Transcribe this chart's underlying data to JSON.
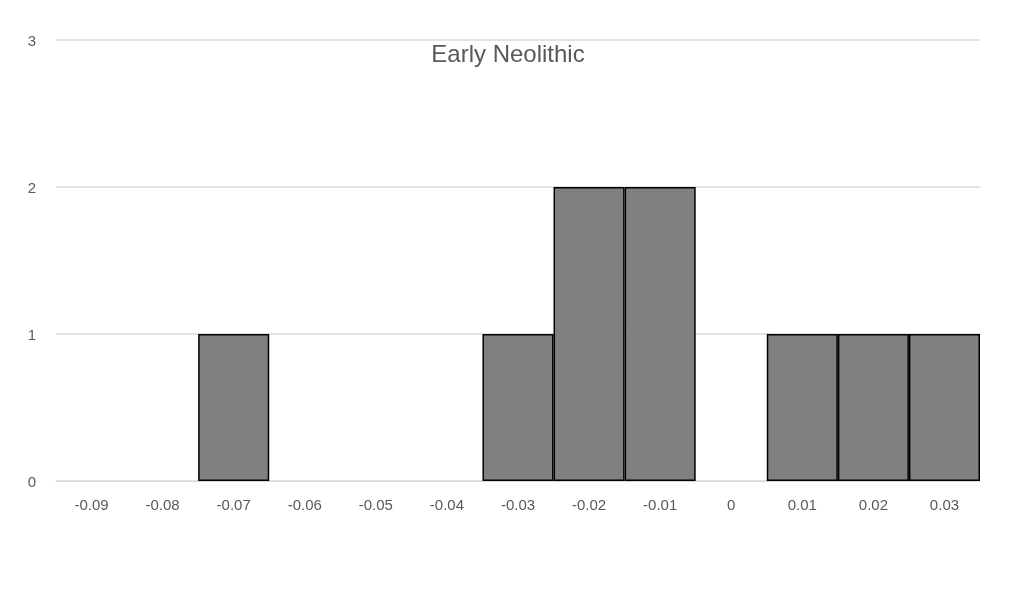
{
  "chart_data": {
    "type": "bar",
    "title": "Early Neolithic",
    "categories": [
      "-0.09",
      "-0.08",
      "-0.07",
      "-0.06",
      "-0.05",
      "-0.04",
      "-0.03",
      "-0.02",
      "-0.01",
      "0",
      "0.01",
      "0.02",
      "0.03"
    ],
    "values": [
      0,
      0,
      1,
      0,
      0,
      0,
      1,
      2,
      2,
      0,
      1,
      1,
      1
    ],
    "color": "#808080",
    "ylim": [
      0,
      3
    ],
    "yticks": [
      0,
      1,
      2,
      3
    ],
    "grid": "y"
  }
}
